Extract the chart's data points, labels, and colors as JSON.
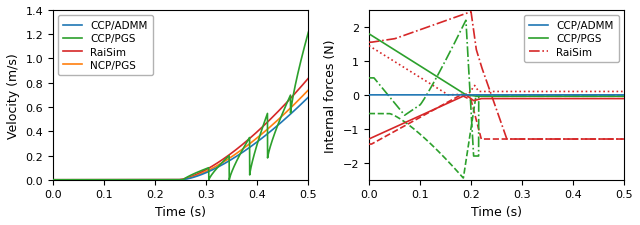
{
  "left_xlabel": "Time (s)",
  "left_ylabel": "Velocity (m/s)",
  "left_xlim": [
    0.0,
    0.5
  ],
  "left_ylim": [
    0.0,
    1.4
  ],
  "left_yticks": [
    0.0,
    0.2,
    0.4,
    0.6,
    0.8,
    1.0,
    1.2,
    1.4
  ],
  "left_xticks": [
    0.0,
    0.1,
    0.2,
    0.3,
    0.4,
    0.5
  ],
  "right_xlabel": "Time (s)",
  "right_ylabel": "Internal forces (N)",
  "right_xlim": [
    0.0,
    0.5
  ],
  "right_ylim": [
    -2.5,
    2.5
  ],
  "right_yticks": [
    -2,
    -1,
    0,
    1,
    2
  ],
  "right_xticks": [
    0.0,
    0.1,
    0.2,
    0.3,
    0.4,
    0.5
  ],
  "color_admm": "#1f77b4",
  "color_pgs": "#2ca02c",
  "color_raisim": "#d62728",
  "color_ncppgs": "#ff7f0e",
  "legend_left": [
    "CCP/ADMM",
    "CCP/PGS",
    "RaiSim",
    "NCP/PGS"
  ],
  "legend_right": [
    "CCP/ADMM",
    "CCP/PGS",
    "RaiSim"
  ]
}
